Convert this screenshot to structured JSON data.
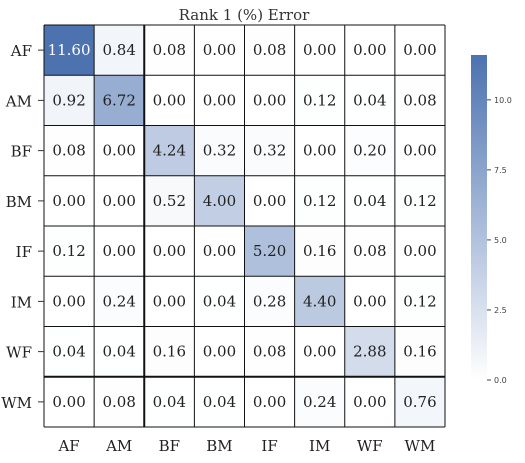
{
  "chart_data": {
    "type": "heatmap",
    "title": "Rank 1 (%) Error",
    "row_labels": [
      "AF",
      "AM",
      "BF",
      "BM",
      "IF",
      "IM",
      "WF",
      "WM"
    ],
    "col_labels": [
      "AF",
      "AM",
      "BF",
      "BM",
      "IF",
      "IM",
      "WF",
      "WM"
    ],
    "values": [
      [
        "11.60",
        "0.84",
        "0.08",
        "0.00",
        "0.08",
        "0.00",
        "0.00",
        "0.00"
      ],
      [
        "0.92",
        "6.72",
        "0.00",
        "0.00",
        "0.00",
        "0.12",
        "0.04",
        "0.08"
      ],
      [
        "0.08",
        "0.00",
        "4.24",
        "0.32",
        "0.32",
        "0.00",
        "0.20",
        "0.00"
      ],
      [
        "0.00",
        "0.00",
        "0.52",
        "4.00",
        "0.00",
        "0.12",
        "0.04",
        "0.12"
      ],
      [
        "0.12",
        "0.00",
        "0.00",
        "0.00",
        "5.20",
        "0.16",
        "0.08",
        "0.00"
      ],
      [
        "0.00",
        "0.24",
        "0.00",
        "0.04",
        "0.28",
        "4.40",
        "0.00",
        "0.12"
      ],
      [
        "0.04",
        "0.04",
        "0.16",
        "0.00",
        "0.08",
        "0.00",
        "2.88",
        "0.16"
      ],
      [
        "0.00",
        "0.08",
        "0.04",
        "0.04",
        "0.00",
        "0.24",
        "0.00",
        "0.76"
      ]
    ],
    "colorbar": {
      "min": 0,
      "max": 11.6,
      "ticks": [
        "0.0",
        "2.5",
        "5.0",
        "7.5",
        "10.0"
      ],
      "color_low": "#ffffff",
      "color_high": "#4c72b0"
    },
    "colormap": "white-to-blue",
    "cell_borders": true,
    "emphasized_separators": "after column AM and after row WF"
  }
}
